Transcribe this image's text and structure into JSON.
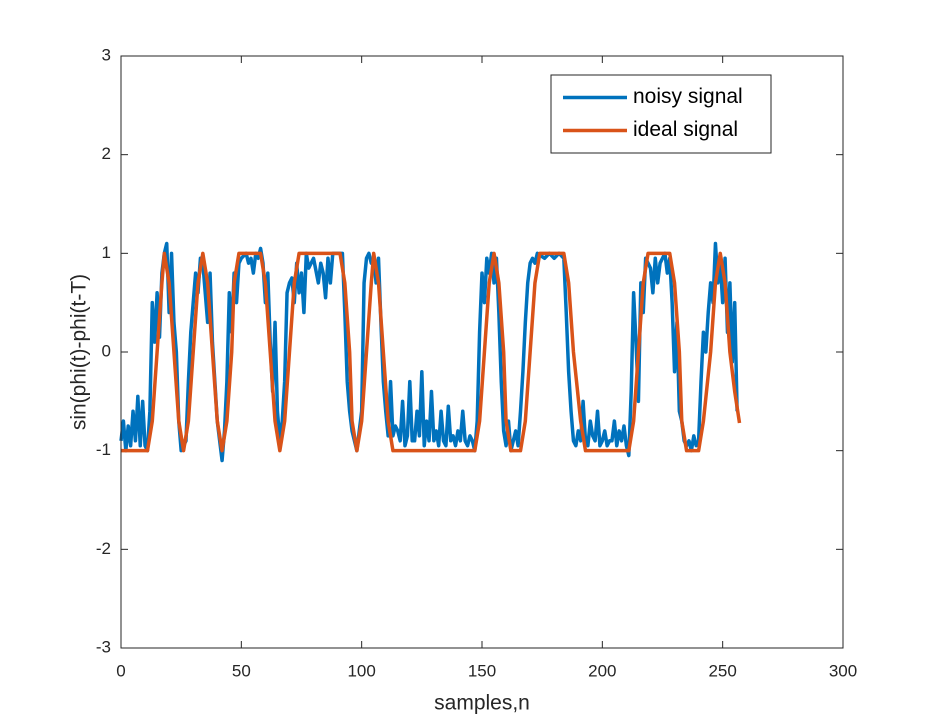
{
  "chart_data": {
    "type": "line",
    "xlabel": "samples,n",
    "ylabel": "sin(phi(t)-phi(t-T)",
    "xlim": [
      0,
      300
    ],
    "ylim": [
      -3,
      3
    ],
    "xticks": [
      0,
      50,
      100,
      150,
      200,
      250,
      300
    ],
    "yticks": [
      -3,
      -2,
      -1,
      0,
      1,
      2,
      3
    ],
    "legend_position": "upper right",
    "series": [
      {
        "name": "noisy signal",
        "color": "#0072BD",
        "x": [
          0,
          1,
          2,
          3,
          4,
          5,
          6,
          7,
          8,
          9,
          10,
          11,
          12,
          13,
          14,
          15,
          16,
          17,
          18,
          19,
          20,
          21,
          22,
          23,
          24,
          25,
          27,
          28,
          29,
          30,
          31,
          32,
          33,
          34,
          36,
          37,
          38,
          39,
          40,
          41,
          42,
          43,
          44,
          45,
          46,
          47,
          48,
          49,
          50,
          52,
          53,
          54,
          55,
          56,
          57,
          58,
          59,
          60,
          61,
          62,
          63,
          64,
          65,
          66,
          67,
          68,
          69,
          70,
          71,
          72,
          73,
          74,
          75,
          76,
          77,
          78,
          80,
          82,
          83,
          84,
          85,
          86,
          87,
          88,
          90,
          92,
          93,
          94,
          95,
          96,
          97,
          98,
          99,
          100,
          101,
          102,
          103,
          104,
          105,
          106,
          107,
          108,
          109,
          110,
          111,
          112,
          113,
          114,
          115,
          116,
          117,
          118,
          119,
          120,
          121,
          122,
          123,
          124,
          125,
          126,
          127,
          128,
          129,
          130,
          131,
          132,
          133,
          134,
          135,
          136,
          137,
          138,
          139,
          140,
          141,
          142,
          143,
          144,
          145,
          146,
          147,
          148,
          149,
          150,
          151,
          152,
          153,
          154,
          155,
          156,
          157,
          158,
          159,
          160,
          161,
          162,
          163,
          164,
          165,
          166,
          167,
          168,
          169,
          170,
          171,
          172,
          173,
          176,
          178,
          180,
          182,
          184,
          185,
          186,
          187,
          188,
          189,
          190,
          191,
          192,
          193,
          194,
          195,
          196,
          197,
          198,
          199,
          200,
          201,
          202,
          203,
          204,
          205,
          206,
          207,
          208,
          209,
          210,
          211,
          212,
          213,
          214,
          215,
          216,
          217,
          218,
          219,
          220,
          221,
          222,
          223,
          224,
          225,
          226,
          227,
          228,
          229,
          230,
          231,
          232,
          233,
          234,
          235,
          236,
          237,
          238,
          239,
          240,
          241,
          242,
          243,
          244,
          245,
          246,
          247,
          248,
          249,
          250,
          251,
          252,
          253,
          254,
          255,
          256
        ],
        "values": [
          -0.9,
          -0.7,
          -1.0,
          -0.75,
          -0.95,
          -0.6,
          -0.9,
          -0.45,
          -0.95,
          -0.5,
          -0.95,
          -1.0,
          -0.6,
          0.5,
          0.1,
          0.6,
          0.15,
          0.8,
          1.0,
          1.1,
          0.4,
          1.0,
          0.3,
          0.0,
          -0.7,
          -1.0,
          -0.9,
          -0.3,
          0.2,
          0.5,
          0.8,
          0.6,
          0.95,
          0.9,
          0.3,
          0.8,
          0.1,
          -0.3,
          -0.7,
          -0.9,
          -1.1,
          -0.8,
          -0.3,
          0.6,
          0.2,
          0.8,
          0.5,
          0.9,
          0.95,
          1.0,
          0.9,
          0.95,
          0.8,
          1.0,
          0.95,
          1.05,
          0.9,
          0.5,
          0.8,
          0.1,
          -0.4,
          0.3,
          -0.6,
          -0.9,
          -0.7,
          -0.3,
          0.6,
          0.7,
          0.75,
          0.5,
          0.9,
          0.6,
          0.8,
          0.4,
          1.0,
          0.85,
          0.95,
          0.7,
          0.9,
          0.8,
          0.55,
          0.95,
          0.7,
          1.0,
          1.0,
          1.0,
          0.4,
          -0.3,
          -0.6,
          -0.8,
          -0.9,
          -1.0,
          -0.8,
          -0.6,
          0.7,
          0.95,
          1.0,
          0.9,
          0.95,
          0.7,
          0.95,
          0.3,
          -0.3,
          -0.6,
          -0.85,
          -0.3,
          -0.85,
          -0.75,
          -0.8,
          -0.9,
          -0.5,
          -0.95,
          -0.85,
          -0.3,
          -0.9,
          -0.9,
          -0.6,
          -0.85,
          -0.2,
          -0.95,
          -0.7,
          -0.9,
          -0.4,
          -0.9,
          -0.8,
          -0.95,
          -0.6,
          -0.9,
          -0.95,
          -0.55,
          -0.9,
          -0.85,
          -0.95,
          -0.8,
          -0.9,
          -0.6,
          -0.9,
          -0.95,
          -0.85,
          -0.9,
          -1.0,
          -0.7,
          0.2,
          0.8,
          0.5,
          0.95,
          0.8,
          1.0,
          0.7,
          0.95,
          0.4,
          -0.3,
          -0.8,
          -0.95,
          -0.7,
          -1.0,
          -0.9,
          -0.8,
          -0.95,
          -0.6,
          -0.2,
          0.3,
          0.7,
          0.9,
          0.95,
          0.9,
          1.0,
          0.95,
          1.0,
          0.95,
          1.0,
          0.95,
          0.4,
          -0.2,
          -0.6,
          -0.9,
          -0.95,
          -0.8,
          -0.9,
          -0.5,
          -0.9,
          -0.95,
          -0.7,
          -0.85,
          -0.9,
          -0.6,
          -0.95,
          -0.9,
          -0.8,
          -0.95,
          -0.9,
          -0.9,
          -0.7,
          -0.95,
          -0.8,
          -0.9,
          -0.75,
          -0.95,
          -1.05,
          -0.4,
          0.6,
          0.1,
          -0.5,
          0.7,
          0.4,
          0.95,
          0.9,
          0.85,
          0.6,
          0.95,
          0.7,
          0.9,
          0.95,
          1.0,
          0.8,
          0.95,
          0.5,
          -0.2,
          0.3,
          -0.6,
          -0.7,
          -0.9,
          -0.95,
          -0.9,
          -1.0,
          -0.85,
          -0.95,
          -0.9,
          -0.3,
          0.2,
          0.0,
          0.4,
          0.7,
          0.5,
          1.1,
          0.7,
          0.9,
          0.5,
          0.95,
          0.2,
          0.7,
          -0.1,
          0.5,
          -0.6
        ]
      },
      {
        "name": "ideal signal",
        "color": "#D95319",
        "x": [
          0,
          11,
          13,
          15,
          17,
          18,
          20,
          22,
          24,
          26,
          28,
          30,
          32,
          34,
          36,
          38,
          40,
          42,
          44,
          46,
          47,
          49,
          58,
          60,
          62,
          64,
          66,
          68,
          70,
          72,
          74,
          91,
          93,
          95,
          96,
          98,
          100,
          102,
          104,
          105,
          107,
          109,
          111,
          113,
          147,
          149,
          151,
          153,
          155,
          157,
          159,
          160,
          162,
          166,
          168,
          170,
          172,
          174,
          184,
          186,
          188,
          191,
          193,
          211,
          213,
          215,
          217,
          219,
          228,
          230,
          232,
          233,
          235,
          240,
          242,
          245,
          247,
          249,
          251,
          253,
          255,
          257
        ],
        "values": [
          -1,
          -1,
          -0.7,
          0,
          0.7,
          1,
          0.7,
          0,
          -0.7,
          -1,
          -0.7,
          0,
          0.7,
          1,
          0.7,
          0,
          -0.7,
          -1,
          -0.7,
          0,
          0.7,
          1,
          1,
          0.7,
          0,
          -0.7,
          -1,
          -0.7,
          0,
          0.7,
          1,
          1,
          0.7,
          0,
          -0.7,
          -1,
          -0.7,
          0,
          0.7,
          1,
          0.7,
          0,
          -0.7,
          -1,
          -1,
          -0.7,
          0,
          0.7,
          1,
          0.7,
          0,
          -0.7,
          -1,
          -1,
          -0.7,
          0,
          0.7,
          1,
          1,
          0.7,
          0,
          -0.7,
          -1,
          -1,
          -0.7,
          0,
          0.7,
          1,
          1,
          0.7,
          0,
          -0.7,
          -1,
          -1,
          -0.7,
          0,
          0.7,
          1,
          0.7,
          0,
          -0.4,
          -0.72
        ]
      }
    ]
  }
}
